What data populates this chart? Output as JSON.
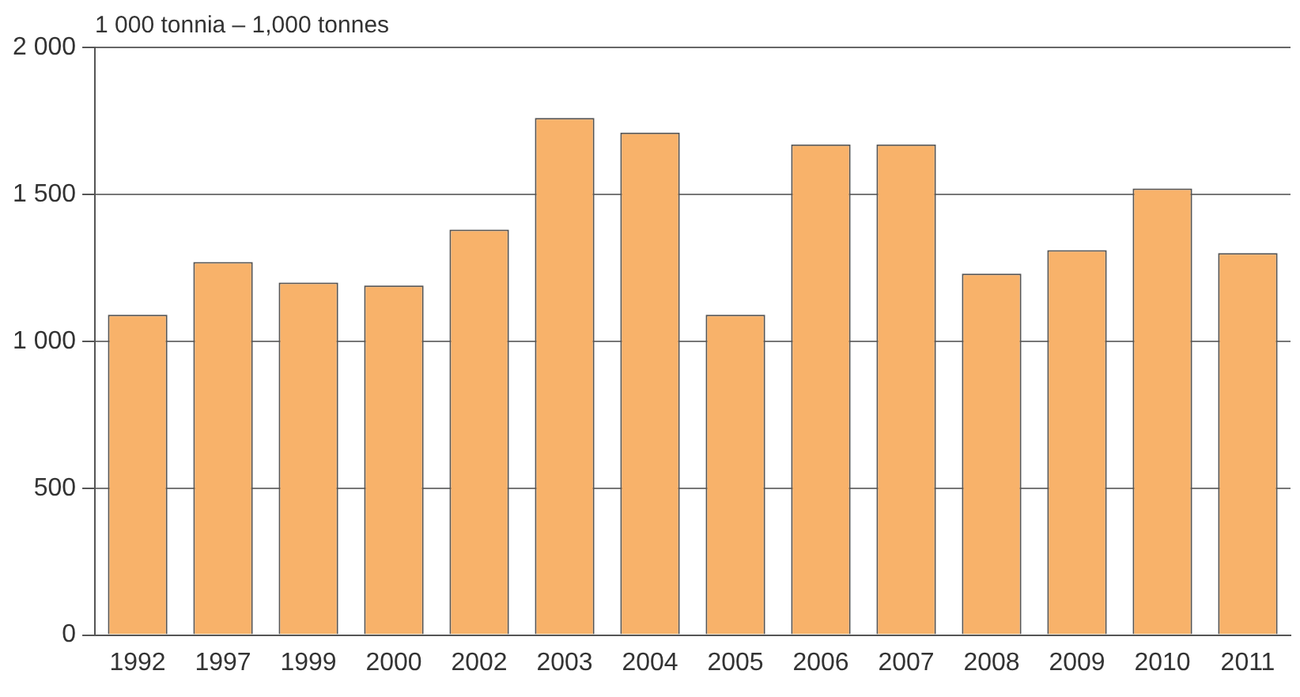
{
  "chart_data": {
    "type": "bar",
    "ylabel": "1 000 tonnia – 1,000 tonnes",
    "categories": [
      "1992",
      "1997",
      "1999",
      "2000",
      "2002",
      "2003",
      "2004",
      "2005",
      "2006",
      "2007",
      "2008",
      "2009",
      "2010",
      "2011"
    ],
    "values": [
      1090,
      1270,
      1200,
      1190,
      1380,
      1760,
      1710,
      1090,
      1670,
      1670,
      1230,
      1310,
      1520,
      1300
    ],
    "color": "#f8b26a",
    "ylim": [
      0,
      2000
    ],
    "yticks": [
      0,
      500,
      {
        "value": 1000,
        "label": "1 000"
      },
      {
        "value": 1500,
        "label": "1 500"
      },
      {
        "value": 2000,
        "label": "2 000"
      }
    ],
    "grid": "y",
    "legend": false
  }
}
